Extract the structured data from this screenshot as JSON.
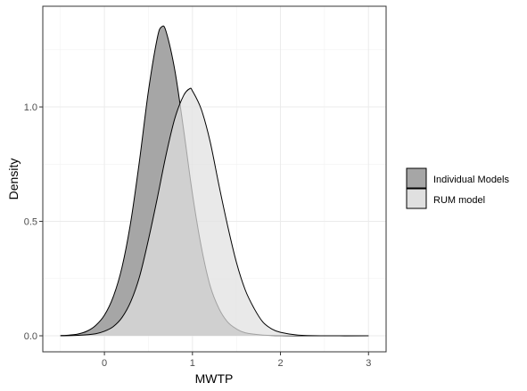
{
  "chart_data": {
    "type": "area",
    "xlabel": "MWTP",
    "ylabel": "Density",
    "xlim": [
      -0.7,
      3.2
    ],
    "ylim": [
      -0.07,
      1.44
    ],
    "x_ticks": [
      0,
      1,
      2,
      3
    ],
    "x_tick_labels": [
      "0",
      "1",
      "2",
      "3"
    ],
    "y_ticks": [
      0.0,
      0.5,
      1.0
    ],
    "y_tick_labels": [
      "0.0",
      "0.5",
      "1.0"
    ],
    "grid": true,
    "legend_position": "right",
    "series": [
      {
        "name": "Individual Models",
        "color": "#a6a6a6",
        "x": [
          -0.5,
          -0.4,
          -0.3,
          -0.2,
          -0.1,
          0.0,
          0.1,
          0.2,
          0.3,
          0.4,
          0.5,
          0.6,
          0.65,
          0.7,
          0.8,
          0.9,
          1.0,
          1.1,
          1.2,
          1.3,
          1.4,
          1.5,
          1.6,
          1.8,
          2.0,
          2.2,
          2.5,
          3.0
        ],
        "values": [
          0.001,
          0.003,
          0.008,
          0.02,
          0.045,
          0.09,
          0.17,
          0.3,
          0.5,
          0.77,
          1.07,
          1.3,
          1.35,
          1.33,
          1.16,
          0.9,
          0.62,
          0.39,
          0.22,
          0.12,
          0.06,
          0.03,
          0.013,
          0.003,
          0.001,
          0.0,
          0.0,
          0.0
        ]
      },
      {
        "name": "RUM model",
        "color": "#e0e0e0",
        "x": [
          -0.5,
          -0.3,
          -0.1,
          0.0,
          0.1,
          0.2,
          0.3,
          0.4,
          0.5,
          0.6,
          0.7,
          0.8,
          0.9,
          0.97,
          1.0,
          1.1,
          1.2,
          1.3,
          1.4,
          1.5,
          1.6,
          1.7,
          1.8,
          1.9,
          2.0,
          2.2,
          2.5,
          3.0
        ],
        "values": [
          0.0,
          0.002,
          0.009,
          0.02,
          0.04,
          0.08,
          0.15,
          0.26,
          0.42,
          0.6,
          0.79,
          0.95,
          1.05,
          1.08,
          1.07,
          0.99,
          0.85,
          0.66,
          0.48,
          0.32,
          0.2,
          0.12,
          0.06,
          0.03,
          0.015,
          0.003,
          0.0,
          0.0
        ]
      }
    ]
  }
}
